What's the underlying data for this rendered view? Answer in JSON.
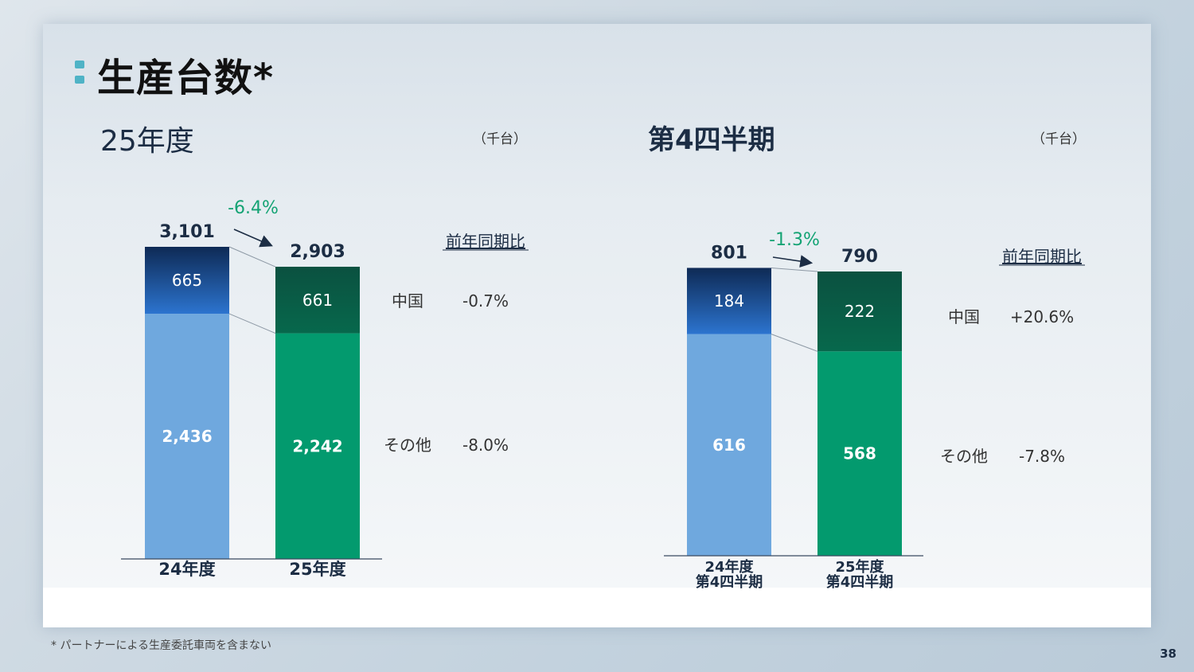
{
  "page": {
    "title": "生産台数*",
    "footnote": "* パートナーによる生産委託車両を含まない",
    "page_number": "38"
  },
  "colors": {
    "china_prev": "#2c74cf",
    "other_prev": "#6fa8de",
    "china_curr": "#05654a",
    "other_curr": "#039a6e",
    "growth": "#14a374",
    "text_dark": "#1c2d44"
  },
  "chart_data": [
    {
      "type": "bar",
      "stacked": true,
      "title": "25年度",
      "unit": "（千台）",
      "categories": [
        "24年度",
        "25年度"
      ],
      "series": [
        {
          "name": "その他",
          "values": [
            2436,
            2242
          ]
        },
        {
          "name": "中国",
          "values": [
            665,
            661
          ]
        }
      ],
      "totals": [
        3101,
        2903
      ],
      "total_labels": [
        "3,101",
        "2,903"
      ],
      "value_labels": {
        "中国": [
          "665",
          "661"
        ],
        "その他": [
          "2,436",
          "2,242"
        ]
      },
      "growth_label": "-6.4%",
      "yoy_header": "前年同期比",
      "yoy": [
        {
          "segment": "中国",
          "value": "-0.7%"
        },
        {
          "segment": "その他",
          "value": "-8.0%"
        }
      ]
    },
    {
      "type": "bar",
      "stacked": true,
      "title": "第4四半期",
      "unit": "（千台）",
      "categories": [
        [
          "24年度",
          "第4四半期"
        ],
        [
          "25年度",
          "第4四半期"
        ]
      ],
      "series": [
        {
          "name": "その他",
          "values": [
            616,
            568
          ]
        },
        {
          "name": "中国",
          "values": [
            184,
            222
          ]
        }
      ],
      "totals": [
        801,
        790
      ],
      "total_labels": [
        "801",
        "790"
      ],
      "value_labels": {
        "中国": [
          "184",
          "222"
        ],
        "その他": [
          "616",
          "568"
        ]
      },
      "growth_label": "-1.3%",
      "yoy_header": "前年同期比",
      "yoy": [
        {
          "segment": "中国",
          "value": "+20.6%"
        },
        {
          "segment": "その他",
          "value": "-7.8%"
        }
      ]
    }
  ]
}
